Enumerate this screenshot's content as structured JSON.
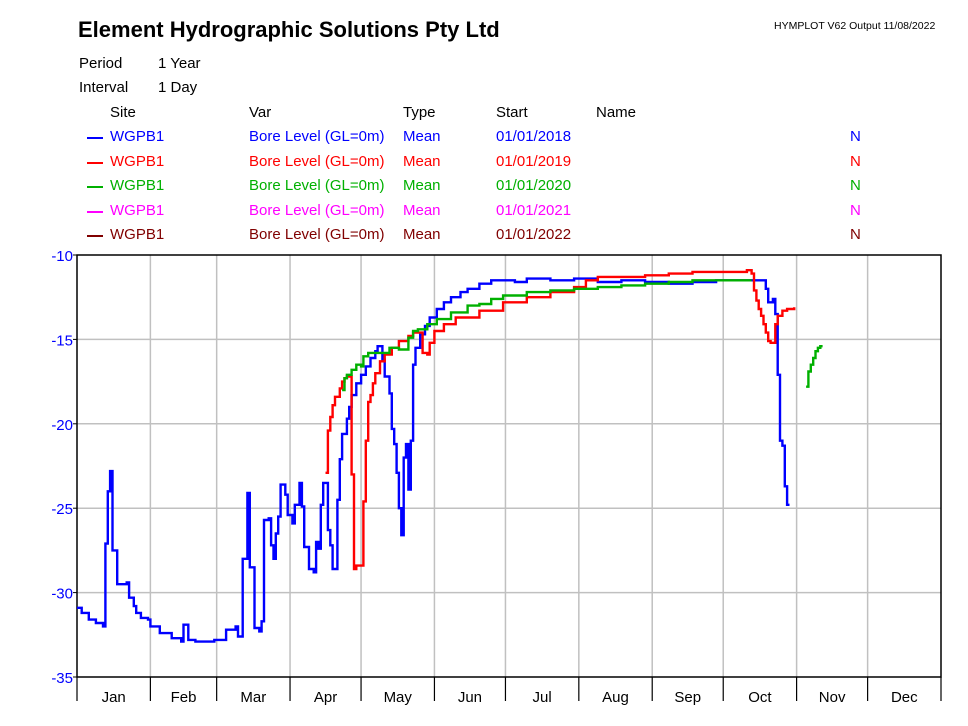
{
  "header": {
    "title": "Element Hydrographic Solutions Pty Ltd",
    "version": "HYMPLOT V62  Output 11/08/2022",
    "period_label": "Period",
    "period_value": "1 Year",
    "interval_label": "Interval",
    "interval_value": "1 Day"
  },
  "legend": {
    "columns": [
      "Site",
      "Var",
      "Type",
      "Start",
      "Name"
    ],
    "rows": [
      {
        "site": "WGPB1",
        "var": "Bore Level (GL=0m)",
        "type": "Mean",
        "start": "01/01/2018",
        "flag": "N",
        "color": "#0000ff"
      },
      {
        "site": "WGPB1",
        "var": "Bore Level (GL=0m)",
        "type": "Mean",
        "start": "01/01/2019",
        "flag": "N",
        "color": "#ff0000"
      },
      {
        "site": "WGPB1",
        "var": "Bore Level (GL=0m)",
        "type": "Mean",
        "start": "01/01/2020",
        "flag": "N",
        "color": "#00b000"
      },
      {
        "site": "WGPB1",
        "var": "Bore Level (GL=0m)",
        "type": "Mean",
        "start": "01/01/2021",
        "flag": "N",
        "color": "#ff00ff"
      },
      {
        "site": "WGPB1",
        "var": "Bore Level (GL=0m)",
        "type": "Mean",
        "start": "01/01/2022",
        "flag": "N",
        "color": "#800000"
      }
    ]
  },
  "chart_data": {
    "type": "line",
    "title": "Element Hydrographic Solutions Pty Ltd",
    "xlabel": "",
    "ylabel": "Bore Level (GL=0m)",
    "x_unit": "day of year",
    "xlim": [
      0,
      365
    ],
    "ylim": [
      -35,
      -10
    ],
    "yticks": [
      -10,
      -15,
      -20,
      -25,
      -30,
      -35
    ],
    "ytick_color": "#0000ff",
    "categories": [
      "Jan",
      "Feb",
      "Mar",
      "Apr",
      "May",
      "Jun",
      "Jul",
      "Aug",
      "Sep",
      "Oct",
      "Nov",
      "Dec"
    ],
    "month_starts": [
      0,
      31,
      59,
      90,
      120,
      151,
      181,
      212,
      243,
      273,
      304,
      334,
      365
    ],
    "grid": true,
    "legend_position": "top",
    "series": [
      {
        "name": "WGPB1 Bore Level (GL=0m) Mean 01/01/2018",
        "color": "#0000ff",
        "points": [
          [
            0,
            -30.9
          ],
          [
            2,
            -31.2
          ],
          [
            5,
            -31.6
          ],
          [
            8,
            -31.8
          ],
          [
            11,
            -32.0
          ],
          [
            12,
            -27.1
          ],
          [
            13,
            -24.0
          ],
          [
            14,
            -22.8
          ],
          [
            15,
            -27.5
          ],
          [
            17,
            -29.5
          ],
          [
            21,
            -29.4
          ],
          [
            22,
            -30.3
          ],
          [
            24,
            -30.8
          ],
          [
            25,
            -31.2
          ],
          [
            27,
            -31.5
          ],
          [
            30,
            -31.6
          ],
          [
            31,
            -32.0
          ],
          [
            35,
            -32.4
          ],
          [
            40,
            -32.7
          ],
          [
            44,
            -32.9
          ],
          [
            45,
            -31.9
          ],
          [
            47,
            -32.8
          ],
          [
            50,
            -32.9
          ],
          [
            55,
            -32.9
          ],
          [
            58,
            -32.8
          ],
          [
            62,
            -32.8
          ],
          [
            63,
            -32.2
          ],
          [
            67,
            -32.0
          ],
          [
            68,
            -32.6
          ],
          [
            70,
            -28.0
          ],
          [
            72,
            -24.1
          ],
          [
            73,
            -28.5
          ],
          [
            75,
            -32.1
          ],
          [
            77,
            -32.3
          ],
          [
            78,
            -31.7
          ],
          [
            79,
            -25.7
          ],
          [
            81,
            -25.6
          ],
          [
            82,
            -27.2
          ],
          [
            83,
            -28.0
          ],
          [
            84,
            -26.5
          ],
          [
            85,
            -25.5
          ],
          [
            86,
            -23.6
          ],
          [
            88,
            -24.2
          ],
          [
            89,
            -25.4
          ],
          [
            91,
            -25.9
          ],
          [
            92,
            -24.8
          ],
          [
            94,
            -23.5
          ],
          [
            95,
            -24.9
          ],
          [
            96,
            -27.3
          ],
          [
            98,
            -28.6
          ],
          [
            100,
            -28.8
          ],
          [
            101,
            -27.0
          ],
          [
            102,
            -27.4
          ],
          [
            103,
            -24.8
          ],
          [
            104,
            -23.5
          ],
          [
            106,
            -26.3
          ],
          [
            107,
            -27.2
          ],
          [
            108,
            -28.6
          ],
          [
            110,
            -24.5
          ],
          [
            111,
            -22.1
          ],
          [
            112,
            -20.6
          ],
          [
            114,
            -19.7
          ],
          [
            115,
            -19.0
          ],
          [
            116,
            -18.3
          ],
          [
            118,
            -17.6
          ],
          [
            120,
            -17.1
          ],
          [
            122,
            -16.6
          ],
          [
            124,
            -16.1
          ],
          [
            126,
            -15.7
          ],
          [
            127,
            -15.4
          ],
          [
            128,
            -15.4
          ],
          [
            129,
            -16.2
          ],
          [
            130,
            -17.2
          ],
          [
            132,
            -18.2
          ],
          [
            133,
            -20.3
          ],
          [
            134,
            -21.2
          ],
          [
            135,
            -22.9
          ],
          [
            136,
            -25.0
          ],
          [
            137,
            -26.6
          ],
          [
            138,
            -22.0
          ],
          [
            139,
            -21.2
          ],
          [
            140,
            -23.9
          ],
          [
            141,
            -21.0
          ],
          [
            142,
            -16.5
          ],
          [
            143,
            -15.5
          ],
          [
            145,
            -14.7
          ],
          [
            147,
            -14.2
          ],
          [
            149,
            -13.7
          ],
          [
            152,
            -13.2
          ],
          [
            155,
            -12.8
          ],
          [
            158,
            -12.5
          ],
          [
            162,
            -12.2
          ],
          [
            165,
            -12.0
          ],
          [
            170,
            -11.7
          ],
          [
            175,
            -11.5
          ],
          [
            180,
            -11.5
          ],
          [
            185,
            -11.6
          ],
          [
            190,
            -11.4
          ],
          [
            200,
            -11.5
          ],
          [
            210,
            -11.4
          ],
          [
            220,
            -11.6
          ],
          [
            230,
            -11.5
          ],
          [
            240,
            -11.6
          ],
          [
            250,
            -11.7
          ],
          [
            260,
            -11.6
          ],
          [
            270,
            -11.5
          ],
          [
            290,
            -11.5
          ],
          [
            291,
            -12.0
          ],
          [
            292,
            -12.8
          ],
          [
            294,
            -12.6
          ],
          [
            295,
            -13.5
          ],
          [
            296,
            -17.1
          ],
          [
            297,
            -21.0
          ],
          [
            298,
            -21.3
          ],
          [
            299,
            -23.7
          ],
          [
            300,
            -24.8
          ],
          [
            301,
            -24.8
          ]
        ]
      },
      {
        "name": "WGPB1 Bore Level (GL=0m) Mean 01/01/2019",
        "color": "#ff0000",
        "points": [
          [
            105,
            -22.9
          ],
          [
            106,
            -20.4
          ],
          [
            107,
            -19.6
          ],
          [
            108,
            -18.9
          ],
          [
            109,
            -18.4
          ],
          [
            111,
            -17.9
          ],
          [
            112,
            -17.5
          ],
          [
            113,
            -17.3
          ],
          [
            114,
            -17.2
          ],
          [
            116,
            -23.0
          ],
          [
            117,
            -28.6
          ],
          [
            118,
            -28.4
          ],
          [
            120,
            -28.4
          ],
          [
            121,
            -24.6
          ],
          [
            122,
            -21.0
          ],
          [
            123,
            -18.7
          ],
          [
            124,
            -18.3
          ],
          [
            125,
            -17.6
          ],
          [
            126,
            -17.0
          ],
          [
            128,
            -16.3
          ],
          [
            130,
            -15.9
          ],
          [
            133,
            -15.5
          ],
          [
            136,
            -15.1
          ],
          [
            140,
            -14.8
          ],
          [
            142,
            -14.6
          ],
          [
            144,
            -14.6
          ],
          [
            146,
            -15.8
          ],
          [
            148,
            -15.9
          ],
          [
            149,
            -15.2
          ],
          [
            151,
            -14.5
          ],
          [
            155,
            -14.1
          ],
          [
            160,
            -13.7
          ],
          [
            170,
            -13.3
          ],
          [
            180,
            -12.8
          ],
          [
            190,
            -12.5
          ],
          [
            200,
            -12.2
          ],
          [
            210,
            -11.9
          ],
          [
            215,
            -11.5
          ],
          [
            220,
            -11.3
          ],
          [
            230,
            -11.3
          ],
          [
            240,
            -11.2
          ],
          [
            250,
            -11.1
          ],
          [
            260,
            -11.0
          ],
          [
            270,
            -11.0
          ],
          [
            283,
            -10.9
          ],
          [
            285,
            -11.1
          ],
          [
            286,
            -12.1
          ],
          [
            287,
            -12.7
          ],
          [
            288,
            -13.2
          ],
          [
            289,
            -13.6
          ],
          [
            290,
            -14.1
          ],
          [
            291,
            -14.6
          ],
          [
            292,
            -15.1
          ],
          [
            293,
            -15.2
          ],
          [
            294,
            -15.2
          ],
          [
            295,
            -14.1
          ],
          [
            296,
            -13.6
          ],
          [
            298,
            -13.3
          ],
          [
            300,
            -13.2
          ],
          [
            303,
            -13.1
          ]
        ]
      },
      {
        "name": "WGPB1 Bore Level (GL=0m) Mean 01/01/2020",
        "color": "#00b000",
        "points": [
          [
            112,
            -18.0
          ],
          [
            113,
            -17.3
          ],
          [
            114,
            -17.1
          ],
          [
            116,
            -16.8
          ],
          [
            118,
            -16.5
          ],
          [
            120,
            -16.6
          ],
          [
            121,
            -16.0
          ],
          [
            123,
            -15.8
          ],
          [
            128,
            -15.8
          ],
          [
            132,
            -15.5
          ],
          [
            136,
            -15.6
          ],
          [
            140,
            -14.9
          ],
          [
            142,
            -14.5
          ],
          [
            144,
            -14.4
          ],
          [
            148,
            -14.1
          ],
          [
            152,
            -13.8
          ],
          [
            158,
            -13.4
          ],
          [
            165,
            -13.0
          ],
          [
            170,
            -12.9
          ],
          [
            175,
            -12.6
          ],
          [
            180,
            -12.4
          ],
          [
            190,
            -12.2
          ],
          [
            200,
            -12.1
          ],
          [
            210,
            -12.0
          ],
          [
            220,
            -11.9
          ],
          [
            230,
            -11.8
          ],
          [
            240,
            -11.7
          ],
          [
            250,
            -11.6
          ],
          [
            260,
            -11.5
          ],
          [
            270,
            -11.5
          ],
          [
            283,
            -11.5
          ],
          [
            285,
            -11.5
          ]
        ],
        "segment2": [
          [
            308,
            -17.8
          ],
          [
            309,
            -16.9
          ],
          [
            310,
            -16.5
          ],
          [
            311,
            -16.1
          ],
          [
            312,
            -15.7
          ],
          [
            313,
            -15.5
          ],
          [
            314,
            -15.4
          ],
          [
            315,
            -15.4
          ]
        ]
      },
      {
        "name": "WGPB1 Bore Level (GL=0m) Mean 01/01/2021",
        "color": "#ff00ff",
        "points": []
      },
      {
        "name": "WGPB1 Bore Level (GL=0m) Mean 01/01/2022",
        "color": "#800000",
        "points": []
      }
    ]
  }
}
